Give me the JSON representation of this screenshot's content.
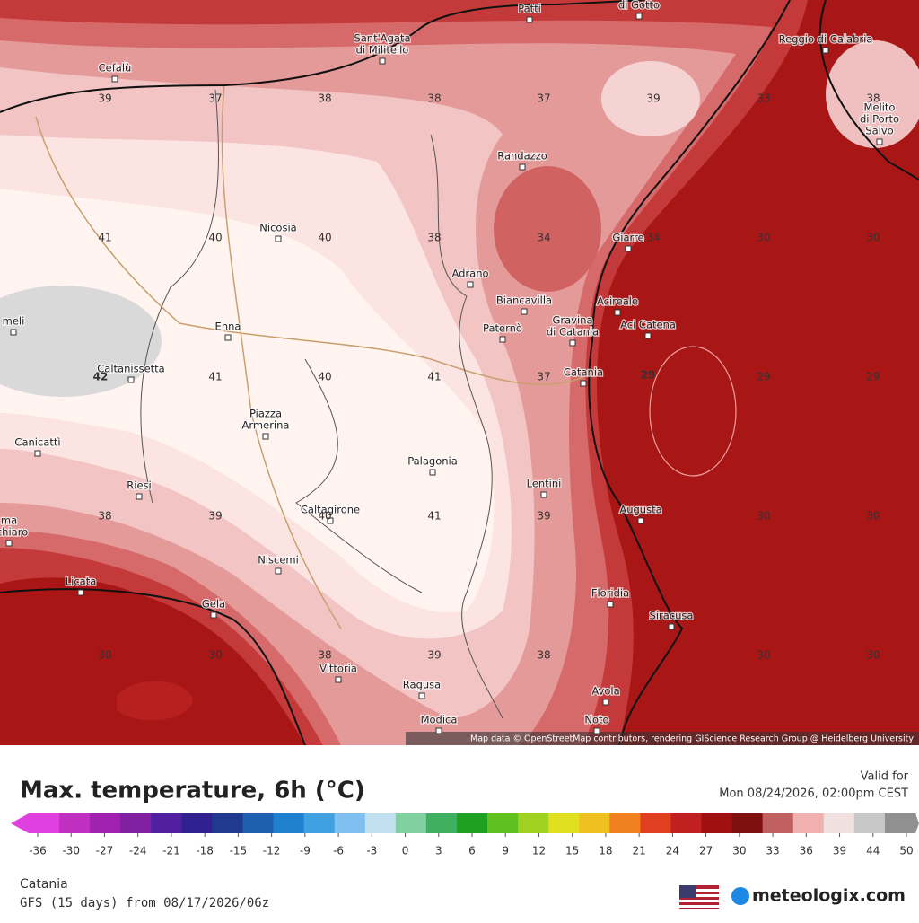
{
  "map": {
    "places": [
      [
        "Patti"
      ],
      [
        "di Gotto"
      ],
      [
        "Sant'Agata",
        "di Militello"
      ],
      [
        "Cefalù"
      ],
      [
        "Reggio di Calabria"
      ],
      [
        "Melito",
        "di Porto",
        "Salvo"
      ],
      [
        "Randazzo"
      ],
      [
        "Nicosia"
      ],
      [
        "Giarre"
      ],
      [
        "Adrano"
      ],
      [
        "Biancavilla"
      ],
      [
        "Acireale"
      ],
      [
        "Gravina",
        "di Catania"
      ],
      [
        "Aci Catena"
      ],
      [
        "Paternò"
      ],
      [
        "Enna"
      ],
      [
        "Catania"
      ],
      [
        "Caltanissetta"
      ],
      [
        "Piazza",
        "Armerina"
      ],
      [
        "Canicattì"
      ],
      [
        "Palagonia"
      ],
      [
        "Lentini"
      ],
      [
        "Riesi"
      ],
      [
        "Caltagirone"
      ],
      [
        "Augusta"
      ],
      [
        "ma",
        "echiaro"
      ],
      [
        "Niscemi"
      ],
      [
        "Licata"
      ],
      [
        "Floridia"
      ],
      [
        "Gela"
      ],
      [
        "Siracusa"
      ],
      [
        "Vittoria"
      ],
      [
        "Ragusa"
      ],
      [
        "Avola"
      ],
      [
        "Noto"
      ],
      [
        "Modica"
      ],
      [
        "meli"
      ]
    ],
    "temperatures": [
      39,
      37,
      38,
      38,
      37,
      39,
      33,
      38,
      41,
      40,
      40,
      38,
      34,
      34,
      30,
      30,
      42,
      41,
      40,
      41,
      37,
      29,
      29,
      29,
      38,
      39,
      40,
      41,
      39,
      30,
      30,
      30,
      30,
      38,
      39,
      38,
      30,
      30
    ],
    "attribution": "Map data © OpenStreetMap contributors, rendering GIScience Research Group @ Heidelberg University"
  },
  "legend": {
    "title": "Max. temperature, 6h (°C)",
    "valid_label": "Valid for",
    "valid_time": "Mon 08/24/2026, 02:00pm CEST",
    "ticks": [
      -36,
      -30,
      -27,
      -24,
      -21,
      -18,
      -15,
      -12,
      -9,
      -6,
      -3,
      0,
      3,
      6,
      9,
      12,
      15,
      18,
      21,
      24,
      27,
      30,
      33,
      36,
      39,
      44,
      50
    ]
  },
  "footer": {
    "location": "Catania",
    "model": "GFS (15 days) from 08/17/2026/06z",
    "brand": "meteologix.com"
  }
}
